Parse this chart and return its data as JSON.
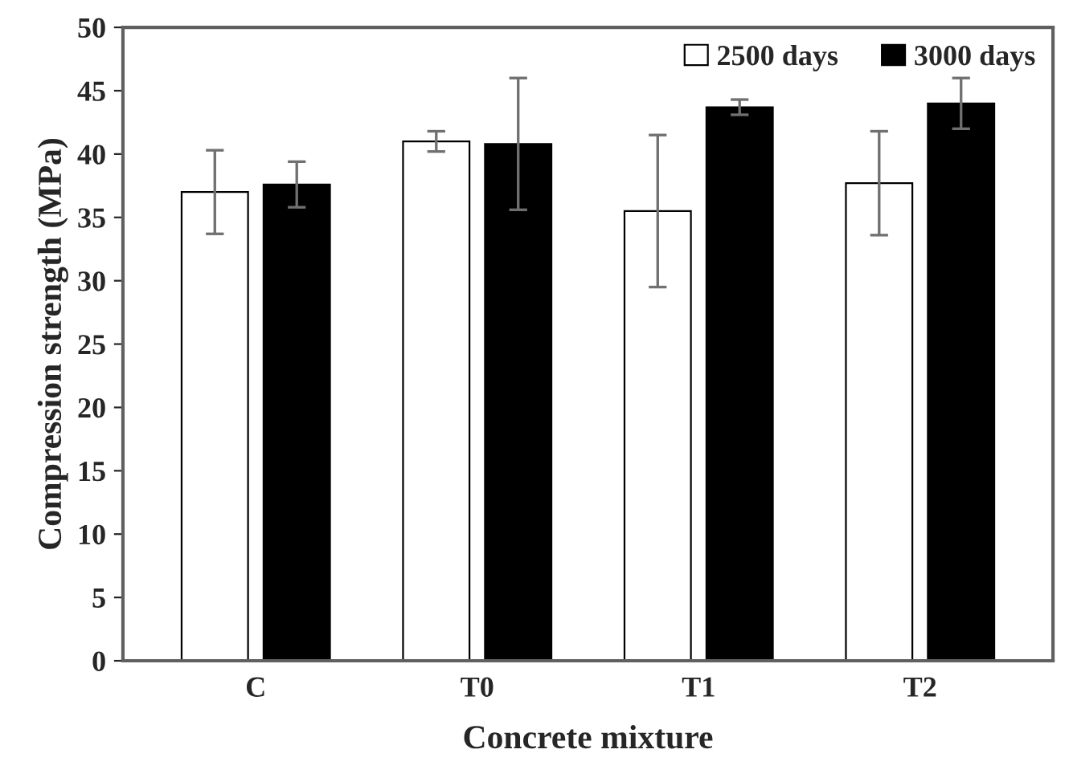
{
  "chart_data": {
    "type": "bar",
    "xlabel": "Concrete mixture",
    "ylabel": "Compression strength (MPa)",
    "categories": [
      "C",
      "T0",
      "T1",
      "T2"
    ],
    "series": [
      {
        "name": "2500 days",
        "color": "#ffffff",
        "values": [
          37.0,
          41.0,
          35.5,
          37.7
        ],
        "errors": [
          3.3,
          0.8,
          6.0,
          4.1
        ]
      },
      {
        "name": "3000 days",
        "color": "#000000",
        "values": [
          37.6,
          40.8,
          43.7,
          44.0
        ],
        "errors": [
          1.8,
          5.2,
          0.6,
          2.0
        ]
      }
    ],
    "ylim": [
      0,
      50
    ],
    "yticks": [
      0,
      5,
      10,
      15,
      20,
      25,
      30,
      35,
      40,
      45,
      50
    ],
    "grid": false,
    "legend": "top right"
  }
}
